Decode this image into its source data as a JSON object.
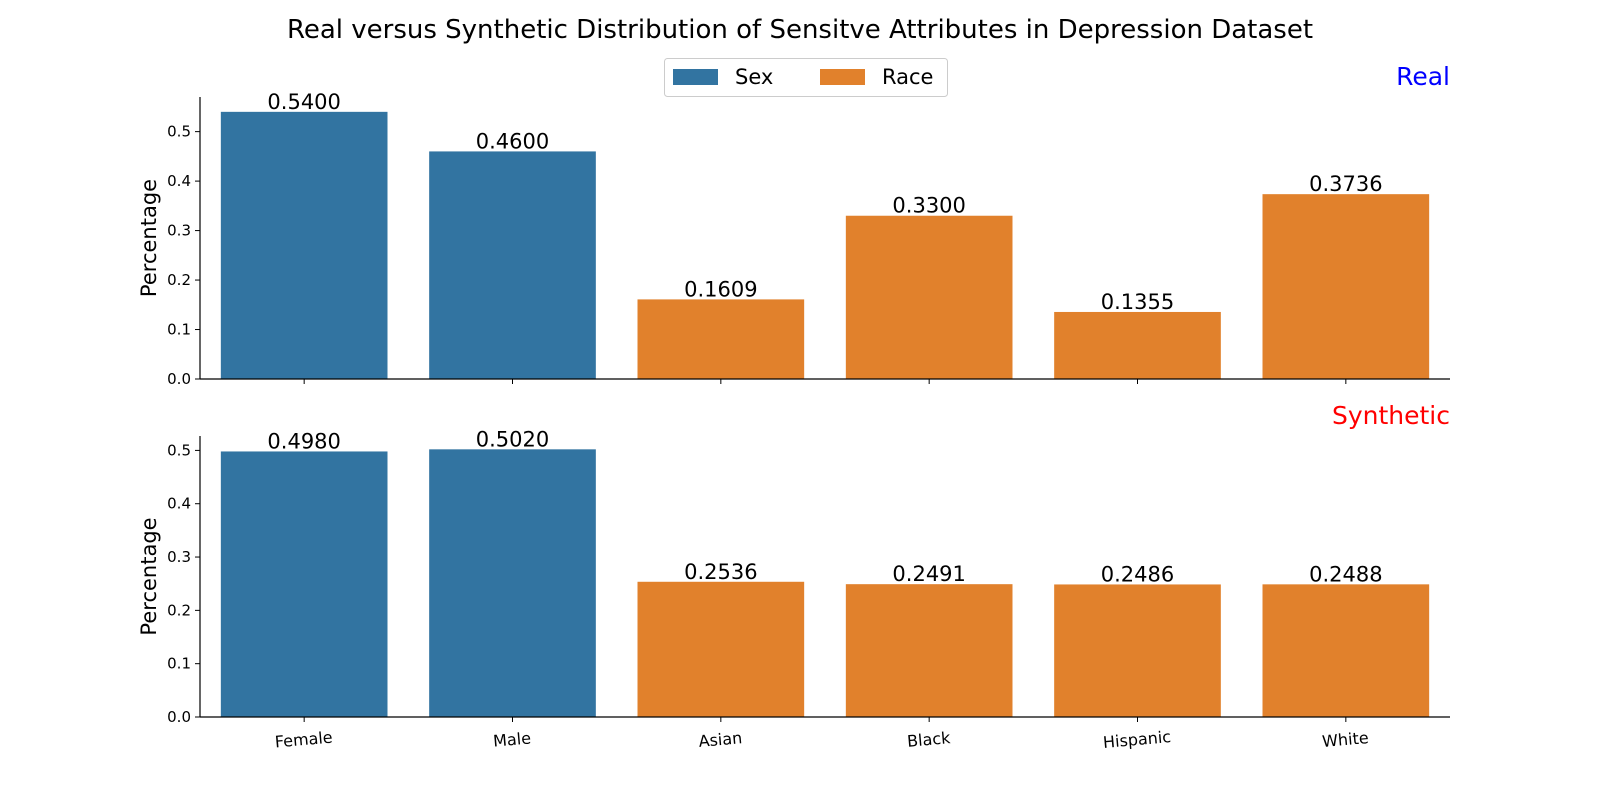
{
  "title": "Real versus Synthetic Distribution of Sensitve Attributes in Depression Dataset",
  "legend": {
    "placement": "top-center",
    "entries": [
      {
        "label": "Sex",
        "color": "#3274a1"
      },
      {
        "label": "Race",
        "color": "#e1812c"
      }
    ]
  },
  "chart_data": [
    {
      "type": "bar",
      "panel_label": "Real",
      "panel_label_color": "#0000ff",
      "ylabel": "Percentage",
      "ylim": [
        0,
        0.57
      ],
      "yticks": [
        "0.0",
        "0.1",
        "0.2",
        "0.3",
        "0.4",
        "0.5"
      ],
      "grid": false,
      "categories": [
        "Female",
        "Male",
        "Asian",
        "Black",
        "Hispanic",
        "White"
      ],
      "groups": [
        "Sex",
        "Sex",
        "Race",
        "Race",
        "Race",
        "Race"
      ],
      "values": [
        0.54,
        0.46,
        0.1609,
        0.33,
        0.1355,
        0.3736
      ],
      "value_labels": [
        "0.5400",
        "0.4600",
        "0.1609",
        "0.3300",
        "0.1355",
        "0.3736"
      ]
    },
    {
      "type": "bar",
      "panel_label": "Synthetic",
      "panel_label_color": "#ff0000",
      "ylabel": "Percentage",
      "ylim": [
        0,
        0.527
      ],
      "yticks": [
        "0.0",
        "0.1",
        "0.2",
        "0.3",
        "0.4",
        "0.5"
      ],
      "grid": false,
      "categories": [
        "Female",
        "Male",
        "Asian",
        "Black",
        "Hispanic",
        "White"
      ],
      "groups": [
        "Sex",
        "Sex",
        "Race",
        "Race",
        "Race",
        "Race"
      ],
      "values": [
        0.498,
        0.502,
        0.2536,
        0.2491,
        0.2486,
        0.2488
      ],
      "value_labels": [
        "0.4980",
        "0.5020",
        "0.2536",
        "0.2491",
        "0.2486",
        "0.2488"
      ]
    }
  ]
}
